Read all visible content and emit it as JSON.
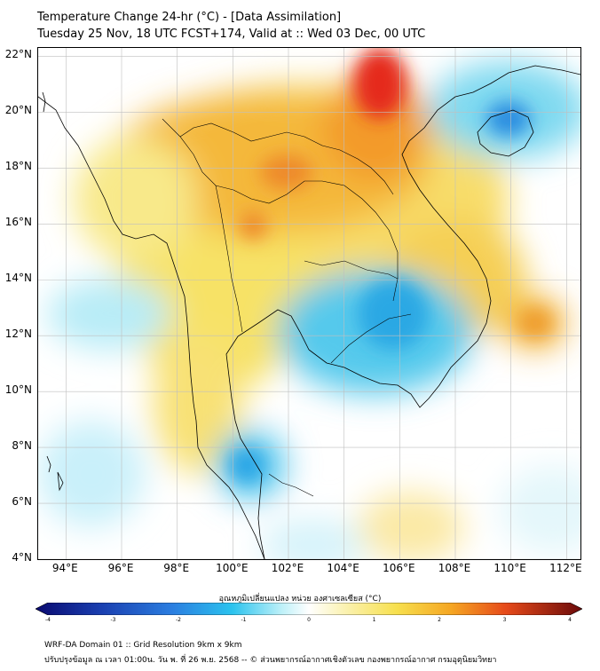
{
  "header": {
    "title_line1": "Temperature Change 24-hr (°C) - [Data Assimilation]",
    "title_line2": "Tuesday 25 Nov, 18 UTC FCST+174, Valid at :: Wed 03 Dec, 00 UTC"
  },
  "map": {
    "lat_labels": [
      "22°N",
      "20°N",
      "18°N",
      "16°N",
      "14°N",
      "12°N",
      "10°N",
      "8°N",
      "6°N",
      "4°N"
    ],
    "lon_labels": [
      "94°E",
      "96°E",
      "98°E",
      "100°E",
      "102°E",
      "104°E",
      "106°E",
      "108°E",
      "110°E",
      "112°E"
    ],
    "lat_range": [
      4,
      22.3
    ],
    "lon_range": [
      93,
      112.5
    ]
  },
  "colorbar": {
    "title": "อุณหภูมิเปลี่ยนแปลง หน่วย องศาเซลเซียส (°C)",
    "range": [
      -4,
      4
    ],
    "ticks": [
      "-4",
      "-3",
      "-2",
      "-1",
      "0",
      "1",
      "2",
      "3",
      "4"
    ]
  },
  "footer": {
    "line1": "WRF-DA Domain 01 :: Grid Resolution 9km x 9km",
    "line2": "ปรับปรุงข้อมูล ณ เวลา 01:00น. วัน พ. ที่ 26 พ.ย. 2568 -- © ส่วนพยากรณ์อากาศเชิงตัวเลข กองพยากรณ์อากาศ กรมอุตุนิยมวิทยา"
  },
  "colors": {
    "positive_high": "#e0201a",
    "positive_mid": "#f5a623",
    "positive_low": "#f7e45a",
    "neutral": "#ffffff",
    "negative_low": "#8fe0f0",
    "negative_mid": "#2bb8e8",
    "negative_high": "#1a3fb0",
    "accent_coast": "#000000"
  }
}
